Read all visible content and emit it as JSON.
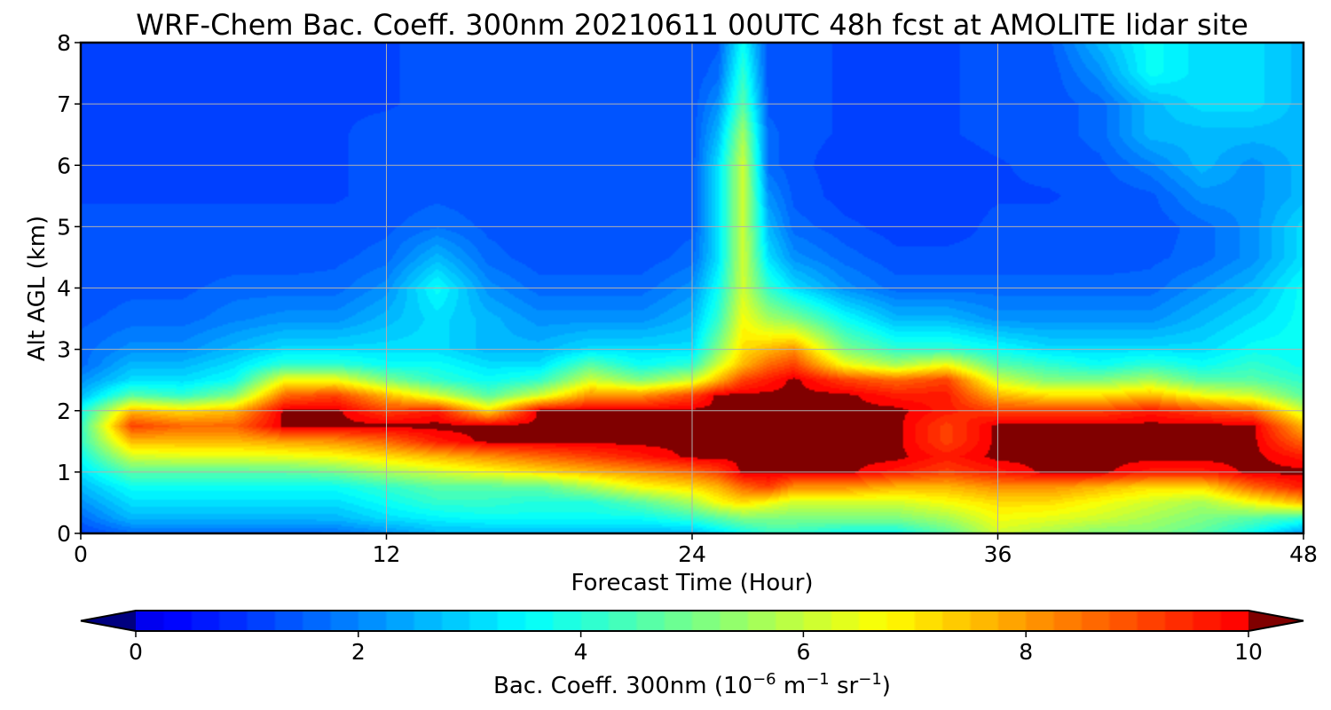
{
  "chart_data": {
    "type": "heatmap",
    "title": "WRF-Chem Bac. Coeff. 300nm  20210611 00UTC 48h fcst at AMOLITE lidar site",
    "xlabel": "Forecast Time (Hour)",
    "ylabel": "Alt AGL (km)",
    "xlim": [
      0,
      48
    ],
    "ylim": [
      0,
      8
    ],
    "x_ticks": [
      "0",
      "12",
      "24",
      "36",
      "48"
    ],
    "y_ticks": [
      "0",
      "1",
      "2",
      "3",
      "4",
      "5",
      "6",
      "7",
      "8"
    ],
    "grid": true,
    "colorbar": {
      "orientation": "horizontal",
      "position": "bottom",
      "extend": "both",
      "range": [
        0,
        10
      ],
      "ticks": [
        "0",
        "2",
        "4",
        "6",
        "8",
        "10"
      ],
      "label_main": "Bac. Coeff. 300nm  (10",
      "label_exp1": "−6",
      "label_mid": " m",
      "label_exp2": "−1",
      "label_mid2": " sr",
      "label_exp3": "−1",
      "label_end": ")",
      "colormap": "jet"
    },
    "x": [
      0,
      2,
      4,
      6,
      8,
      10,
      12,
      14,
      16,
      18,
      20,
      22,
      24,
      25,
      26,
      27,
      28,
      30,
      32,
      34,
      36,
      38,
      40,
      42,
      44,
      46,
      48
    ],
    "y": [
      0,
      0.25,
      0.5,
      0.75,
      1,
      1.25,
      1.5,
      1.75,
      2,
      2.25,
      2.5,
      2.75,
      3,
      3.5,
      4,
      4.5,
      5,
      5.5,
      6,
      6.5,
      7,
      7.5,
      8
    ],
    "z": [
      [
        1.0,
        1.5,
        1.5,
        1.5,
        1.5,
        1.6,
        2.0,
        2.5,
        2.5,
        2.5,
        2.5,
        2.5,
        2.5,
        3.0,
        3.5,
        4.0,
        4.0,
        3.5,
        3.5,
        4.5,
        6.0,
        5.5,
        5.0,
        5.0,
        4.5,
        3.5,
        2.0
      ],
      [
        1.5,
        2.5,
        2.5,
        2.5,
        2.5,
        2.5,
        3.0,
        3.3,
        3.5,
        3.5,
        3.5,
        3.5,
        4.0,
        4.5,
        5.0,
        5.0,
        5.0,
        5.0,
        5.0,
        5.5,
        6.5,
        6.3,
        6.0,
        5.5,
        5.0,
        4.5,
        4.0
      ],
      [
        2.0,
        3.0,
        3.0,
        3.0,
        3.0,
        3.0,
        3.5,
        4.0,
        4.0,
        3.8,
        3.8,
        4.5,
        5.5,
        6.5,
        7.0,
        6.5,
        6.0,
        6.0,
        6.0,
        6.5,
        7.0,
        7.0,
        6.5,
        6.0,
        5.5,
        6.5,
        7.5
      ],
      [
        2.5,
        3.5,
        3.5,
        3.5,
        3.5,
        3.5,
        4.0,
        4.5,
        4.5,
        4.5,
        5.5,
        6.5,
        7.0,
        7.5,
        8.5,
        9.0,
        8.0,
        8.0,
        7.5,
        7.5,
        8.0,
        8.0,
        7.5,
        7.0,
        7.0,
        8.5,
        9.5
      ],
      [
        3.0,
        4.5,
        4.5,
        4.5,
        4.5,
        4.8,
        5.5,
        6.0,
        6.5,
        7.0,
        7.5,
        8.0,
        8.5,
        9.0,
        10.0,
        10.0,
        10.0,
        10.0,
        9.5,
        9.0,
        9.5,
        10.0,
        10.0,
        9.5,
        9.5,
        10.0,
        10.0
      ],
      [
        3.5,
        6.0,
        6.2,
        6.2,
        6.3,
        6.5,
        7.0,
        7.5,
        8.0,
        8.5,
        9.0,
        9.5,
        10.0,
        10.0,
        10.0,
        10.0,
        10.0,
        10.0,
        10.0,
        9.5,
        10.0,
        10.0,
        10.0,
        10.0,
        10.0,
        10.0,
        9.5
      ],
      [
        4.0,
        7.5,
        7.5,
        7.5,
        7.8,
        8.0,
        8.5,
        9.5,
        10.0,
        10.0,
        10.0,
        10.0,
        10.0,
        10.0,
        10.0,
        10.0,
        10.0,
        10.0,
        10.0,
        9.0,
        10.0,
        10.0,
        10.0,
        10.0,
        10.0,
        10.0,
        8.5
      ],
      [
        4.0,
        9.0,
        8.5,
        8.5,
        10.0,
        10.0,
        10.0,
        10.0,
        10.0,
        10.0,
        10.0,
        10.0,
        10.0,
        10.0,
        10.0,
        10.0,
        10.0,
        10.0,
        10.0,
        9.0,
        10.0,
        10.0,
        10.0,
        10.0,
        10.0,
        10.0,
        7.5
      ],
      [
        3.5,
        7.5,
        7.0,
        7.5,
        10.0,
        10.0,
        9.0,
        9.5,
        7.0,
        10.0,
        10.0,
        10.0,
        10.0,
        10.0,
        10.0,
        10.0,
        10.0,
        10.0,
        10.0,
        9.5,
        9.0,
        9.0,
        9.0,
        9.5,
        9.0,
        8.5,
        6.0
      ],
      [
        2.5,
        4.5,
        4.0,
        5.0,
        8.5,
        9.0,
        7.5,
        6.0,
        4.5,
        6.0,
        8.0,
        8.0,
        9.0,
        10.0,
        10.0,
        10.0,
        10.0,
        10.0,
        9.5,
        9.5,
        7.5,
        7.0,
        7.0,
        7.5,
        6.5,
        6.0,
        4.5
      ],
      [
        2.0,
        3.0,
        3.0,
        3.5,
        6.5,
        6.5,
        5.0,
        4.0,
        3.5,
        4.0,
        6.0,
        5.0,
        6.0,
        7.5,
        9.0,
        9.5,
        10.0,
        9.0,
        8.5,
        9.0,
        6.0,
        5.0,
        5.0,
        5.5,
        4.5,
        4.5,
        4.0
      ],
      [
        1.5,
        2.5,
        2.5,
        3.0,
        4.0,
        4.0,
        3.5,
        3.5,
        3.0,
        3.0,
        4.5,
        3.5,
        4.0,
        6.0,
        7.5,
        8.5,
        9.0,
        6.5,
        5.5,
        6.5,
        4.5,
        4.0,
        3.5,
        4.0,
        3.5,
        4.0,
        3.5
      ],
      [
        1.5,
        2.0,
        2.0,
        2.5,
        3.0,
        3.0,
        3.0,
        3.0,
        2.5,
        2.5,
        3.0,
        3.0,
        3.0,
        5.0,
        7.0,
        7.5,
        8.0,
        5.0,
        4.0,
        4.0,
        3.5,
        3.0,
        3.0,
        3.0,
        3.0,
        3.5,
        3.5
      ],
      [
        1.3,
        1.5,
        1.5,
        1.8,
        2.0,
        2.0,
        2.5,
        3.0,
        2.5,
        2.0,
        2.0,
        2.0,
        2.5,
        4.0,
        6.5,
        5.5,
        5.0,
        3.5,
        2.5,
        2.5,
        2.0,
        2.0,
        2.0,
        2.0,
        2.5,
        3.0,
        3.5
      ],
      [
        1.2,
        1.3,
        1.3,
        1.5,
        1.5,
        1.5,
        2.0,
        3.5,
        2.0,
        1.5,
        1.5,
        1.5,
        2.0,
        3.5,
        6.0,
        4.0,
        3.0,
        2.0,
        1.5,
        1.5,
        1.5,
        1.5,
        1.5,
        1.5,
        2.0,
        2.5,
        3.5
      ],
      [
        1.2,
        1.2,
        1.2,
        1.2,
        1.2,
        1.3,
        1.5,
        2.5,
        1.5,
        1.2,
        1.2,
        1.2,
        1.5,
        3.0,
        6.0,
        3.0,
        2.0,
        1.5,
        1.2,
        1.2,
        1.2,
        1.2,
        1.2,
        1.3,
        1.5,
        2.0,
        3.0
      ],
      [
        1.2,
        1.2,
        1.2,
        1.2,
        1.2,
        1.2,
        1.3,
        1.6,
        1.3,
        1.2,
        1.2,
        1.2,
        1.3,
        3.0,
        6.0,
        2.5,
        1.5,
        1.2,
        1.0,
        1.0,
        1.2,
        1.2,
        1.2,
        1.2,
        1.5,
        2.0,
        3.0
      ],
      [
        1.1,
        1.1,
        1.1,
        1.1,
        1.1,
        1.1,
        1.2,
        1.3,
        1.2,
        1.2,
        1.2,
        1.2,
        1.2,
        3.0,
        6.0,
        2.0,
        1.3,
        1.0,
        0.9,
        1.0,
        1.1,
        1.1,
        1.2,
        1.3,
        2.0,
        2.0,
        2.5
      ],
      [
        1.1,
        1.1,
        1.1,
        1.1,
        1.1,
        1.1,
        1.2,
        1.2,
        1.2,
        1.2,
        1.2,
        1.2,
        1.2,
        3.0,
        6.0,
        1.5,
        1.2,
        1.0,
        1.0,
        1.0,
        1.1,
        1.2,
        1.3,
        1.8,
        2.5,
        2.0,
        2.5
      ],
      [
        1.1,
        1.1,
        1.1,
        1.1,
        1.1,
        1.1,
        1.2,
        1.2,
        1.2,
        1.2,
        1.2,
        1.2,
        1.2,
        2.5,
        5.5,
        1.5,
        1.2,
        1.1,
        1.1,
        1.1,
        1.2,
        1.2,
        1.5,
        2.5,
        2.5,
        2.5,
        2.5
      ],
      [
        1.1,
        1.1,
        1.1,
        1.1,
        1.1,
        1.1,
        1.1,
        1.2,
        1.2,
        1.2,
        1.2,
        1.2,
        1.2,
        2.0,
        4.5,
        1.3,
        1.2,
        1.1,
        1.1,
        1.1,
        1.2,
        1.2,
        1.5,
        2.5,
        3.0,
        3.0,
        2.5
      ],
      [
        1.1,
        1.1,
        1.1,
        1.1,
        1.1,
        1.1,
        1.1,
        1.2,
        1.2,
        1.2,
        1.2,
        1.2,
        1.2,
        1.5,
        4.0,
        1.2,
        1.2,
        1.1,
        1.1,
        1.1,
        1.2,
        1.2,
        2.0,
        3.5,
        3.0,
        3.0,
        2.5
      ],
      [
        1.1,
        1.1,
        1.1,
        1.1,
        1.1,
        1.1,
        1.1,
        1.2,
        1.2,
        1.2,
        1.2,
        1.2,
        1.2,
        1.3,
        3.5,
        1.2,
        1.2,
        1.1,
        1.1,
        1.1,
        1.2,
        1.3,
        2.5,
        3.5,
        3.0,
        3.0,
        2.5
      ]
    ]
  }
}
